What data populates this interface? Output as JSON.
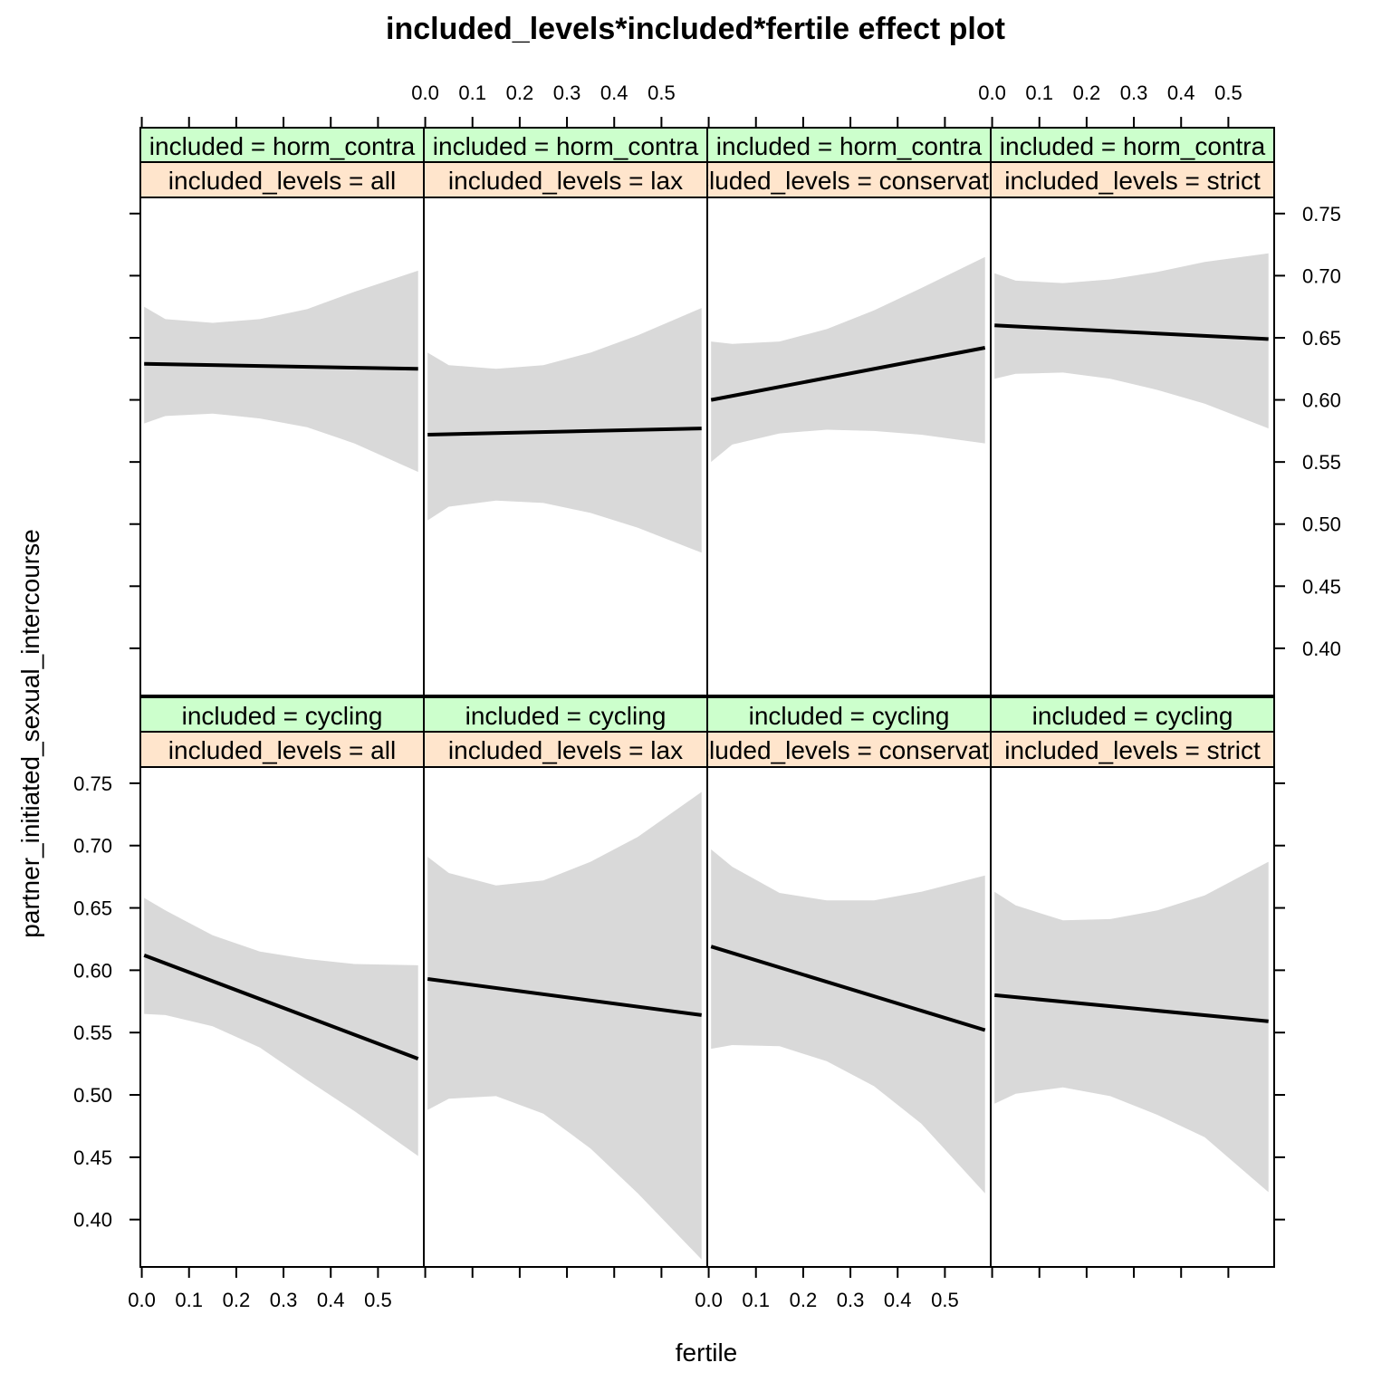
{
  "chart_data": {
    "type": "line",
    "title": "included_levels*included*fertile effect plot",
    "xlabel": "fertile",
    "ylabel": "partner_initiated_sexual_intercourse",
    "xlim": [
      -0.003,
      0.597
    ],
    "ylim": [
      0.362,
      0.763
    ],
    "x_ticks": [
      0.0,
      0.1,
      0.2,
      0.3,
      0.4,
      0.5
    ],
    "x_tick_labels": [
      "0.0",
      "0.1",
      "0.2",
      "0.3",
      "0.4",
      "0.5"
    ],
    "y_ticks": [
      0.4,
      0.45,
      0.5,
      0.55,
      0.6,
      0.65,
      0.7,
      0.75
    ],
    "y_tick_labels": [
      "0.40",
      "0.45",
      "0.50",
      "0.55",
      "0.60",
      "0.65",
      "0.70",
      "0.75"
    ],
    "strip_colors": {
      "included": "#ccffcc",
      "included_levels": "#ffe5cc"
    },
    "band_color": "#d9d9d9",
    "line_color": "#000000",
    "panels": [
      {
        "included": "included = horm_contra",
        "included_levels": "included_levels = all",
        "line": [
          [
            0.005,
            0.629
          ],
          [
            0.585,
            0.625
          ]
        ],
        "upper": [
          [
            0.005,
            0.675
          ],
          [
            0.05,
            0.665
          ],
          [
            0.15,
            0.662
          ],
          [
            0.25,
            0.665
          ],
          [
            0.35,
            0.673
          ],
          [
            0.45,
            0.687
          ],
          [
            0.585,
            0.704
          ]
        ],
        "lower": [
          [
            0.005,
            0.581
          ],
          [
            0.05,
            0.587
          ],
          [
            0.15,
            0.589
          ],
          [
            0.25,
            0.585
          ],
          [
            0.35,
            0.578
          ],
          [
            0.45,
            0.565
          ],
          [
            0.585,
            0.542
          ]
        ]
      },
      {
        "included": "included = horm_contra",
        "included_levels": "included_levels = lax",
        "line": [
          [
            0.005,
            0.572
          ],
          [
            0.585,
            0.577
          ]
        ],
        "upper": [
          [
            0.005,
            0.638
          ],
          [
            0.05,
            0.628
          ],
          [
            0.15,
            0.625
          ],
          [
            0.25,
            0.628
          ],
          [
            0.35,
            0.638
          ],
          [
            0.45,
            0.652
          ],
          [
            0.585,
            0.674
          ]
        ],
        "lower": [
          [
            0.005,
            0.503
          ],
          [
            0.05,
            0.514
          ],
          [
            0.15,
            0.519
          ],
          [
            0.25,
            0.517
          ],
          [
            0.35,
            0.509
          ],
          [
            0.45,
            0.497
          ],
          [
            0.585,
            0.477
          ]
        ]
      },
      {
        "included": "included = horm_contra",
        "included_levels": "included_levels = conservative",
        "line": [
          [
            0.005,
            0.6
          ],
          [
            0.585,
            0.642
          ]
        ],
        "upper": [
          [
            0.005,
            0.647
          ],
          [
            0.05,
            0.645
          ],
          [
            0.15,
            0.647
          ],
          [
            0.25,
            0.657
          ],
          [
            0.35,
            0.672
          ],
          [
            0.45,
            0.69
          ],
          [
            0.585,
            0.715
          ]
        ],
        "lower": [
          [
            0.005,
            0.55
          ],
          [
            0.05,
            0.564
          ],
          [
            0.15,
            0.573
          ],
          [
            0.25,
            0.576
          ],
          [
            0.35,
            0.575
          ],
          [
            0.45,
            0.572
          ],
          [
            0.585,
            0.565
          ]
        ]
      },
      {
        "included": "included = horm_contra",
        "included_levels": "included_levels = strict",
        "line": [
          [
            0.005,
            0.66
          ],
          [
            0.585,
            0.649
          ]
        ],
        "upper": [
          [
            0.005,
            0.702
          ],
          [
            0.05,
            0.696
          ],
          [
            0.15,
            0.694
          ],
          [
            0.25,
            0.697
          ],
          [
            0.35,
            0.703
          ],
          [
            0.45,
            0.711
          ],
          [
            0.585,
            0.718
          ]
        ],
        "lower": [
          [
            0.005,
            0.617
          ],
          [
            0.05,
            0.621
          ],
          [
            0.15,
            0.622
          ],
          [
            0.25,
            0.617
          ],
          [
            0.35,
            0.608
          ],
          [
            0.45,
            0.597
          ],
          [
            0.585,
            0.577
          ]
        ]
      },
      {
        "included": "included = cycling",
        "included_levels": "included_levels = all",
        "line": [
          [
            0.005,
            0.612
          ],
          [
            0.585,
            0.529
          ]
        ],
        "upper": [
          [
            0.005,
            0.658
          ],
          [
            0.05,
            0.648
          ],
          [
            0.15,
            0.628
          ],
          [
            0.25,
            0.615
          ],
          [
            0.35,
            0.609
          ],
          [
            0.45,
            0.605
          ],
          [
            0.585,
            0.604
          ]
        ],
        "lower": [
          [
            0.005,
            0.565
          ],
          [
            0.05,
            0.564
          ],
          [
            0.15,
            0.555
          ],
          [
            0.25,
            0.538
          ],
          [
            0.35,
            0.512
          ],
          [
            0.45,
            0.487
          ],
          [
            0.585,
            0.451
          ]
        ]
      },
      {
        "included": "included = cycling",
        "included_levels": "included_levels = lax",
        "line": [
          [
            0.005,
            0.593
          ],
          [
            0.585,
            0.564
          ]
        ],
        "upper": [
          [
            0.005,
            0.691
          ],
          [
            0.05,
            0.678
          ],
          [
            0.15,
            0.668
          ],
          [
            0.25,
            0.672
          ],
          [
            0.35,
            0.687
          ],
          [
            0.45,
            0.707
          ],
          [
            0.585,
            0.743
          ]
        ],
        "lower": [
          [
            0.005,
            0.488
          ],
          [
            0.05,
            0.497
          ],
          [
            0.15,
            0.499
          ],
          [
            0.25,
            0.485
          ],
          [
            0.35,
            0.457
          ],
          [
            0.45,
            0.421
          ],
          [
            0.585,
            0.368
          ]
        ]
      },
      {
        "included": "included = cycling",
        "included_levels": "included_levels = conservative",
        "line": [
          [
            0.005,
            0.619
          ],
          [
            0.585,
            0.552
          ]
        ],
        "upper": [
          [
            0.005,
            0.697
          ],
          [
            0.05,
            0.683
          ],
          [
            0.15,
            0.662
          ],
          [
            0.25,
            0.656
          ],
          [
            0.35,
            0.656
          ],
          [
            0.45,
            0.663
          ],
          [
            0.585,
            0.676
          ]
        ],
        "lower": [
          [
            0.005,
            0.537
          ],
          [
            0.05,
            0.54
          ],
          [
            0.15,
            0.539
          ],
          [
            0.25,
            0.527
          ],
          [
            0.35,
            0.507
          ],
          [
            0.45,
            0.477
          ],
          [
            0.585,
            0.421
          ]
        ]
      },
      {
        "included": "included = cycling",
        "included_levels": "included_levels = strict",
        "line": [
          [
            0.005,
            0.58
          ],
          [
            0.585,
            0.559
          ]
        ],
        "upper": [
          [
            0.005,
            0.663
          ],
          [
            0.05,
            0.652
          ],
          [
            0.15,
            0.64
          ],
          [
            0.25,
            0.641
          ],
          [
            0.35,
            0.648
          ],
          [
            0.45,
            0.66
          ],
          [
            0.585,
            0.687
          ]
        ],
        "lower": [
          [
            0.005,
            0.493
          ],
          [
            0.05,
            0.501
          ],
          [
            0.15,
            0.506
          ],
          [
            0.25,
            0.499
          ],
          [
            0.35,
            0.484
          ],
          [
            0.45,
            0.466
          ],
          [
            0.585,
            0.422
          ]
        ]
      }
    ]
  }
}
